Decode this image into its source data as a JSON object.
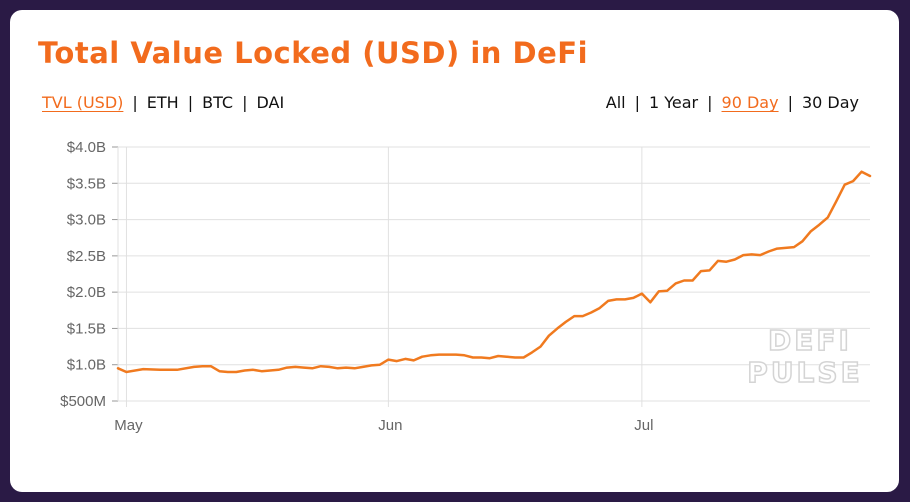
{
  "title": "Total Value Locked (USD) in DeFi",
  "metric_tabs": [
    {
      "label": "TVL (USD)",
      "active": true
    },
    {
      "label": "ETH",
      "active": false
    },
    {
      "label": "BTC",
      "active": false
    },
    {
      "label": "DAI",
      "active": false
    }
  ],
  "range_tabs": [
    {
      "label": "All",
      "active": false
    },
    {
      "label": "1 Year",
      "active": false
    },
    {
      "label": "90 Day",
      "active": true
    },
    {
      "label": "30 Day",
      "active": false
    }
  ],
  "separator": "|",
  "watermark": [
    "DEFI",
    "PULSE"
  ],
  "colors": {
    "accent": "#f26b1d",
    "line": "#f07a1f",
    "grid": "#e0e0e0",
    "background": "#2a1a45"
  },
  "chart_data": {
    "type": "line",
    "xlabel": "",
    "ylabel": "",
    "ylim": [
      0.5,
      4.0
    ],
    "y_ticks": [
      {
        "value": 4.0,
        "label": "$4.0B"
      },
      {
        "value": 3.5,
        "label": "$3.5B"
      },
      {
        "value": 3.0,
        "label": "$3.0B"
      },
      {
        "value": 2.5,
        "label": "$2.5B"
      },
      {
        "value": 2.0,
        "label": "$2.0B"
      },
      {
        "value": 1.5,
        "label": "$1.5B"
      },
      {
        "value": 1.0,
        "label": "$1.0B"
      },
      {
        "value": 0.5,
        "label": "$500M"
      }
    ],
    "x_range": [
      "2020-04-30",
      "2020-07-28"
    ],
    "x_ticks": [
      {
        "date": "2020-05-01",
        "label": "May"
      },
      {
        "date": "2020-06-01",
        "label": "Jun"
      },
      {
        "date": "2020-07-01",
        "label": "Jul"
      }
    ],
    "grid": true,
    "series": [
      {
        "values": [
          [
            "2020-04-30",
            0.95
          ],
          [
            "2020-05-01",
            0.9
          ],
          [
            "2020-05-03",
            0.94
          ],
          [
            "2020-05-05",
            0.93
          ],
          [
            "2020-05-07",
            0.93
          ],
          [
            "2020-05-09",
            0.97
          ],
          [
            "2020-05-10",
            0.98
          ],
          [
            "2020-05-11",
            0.98
          ],
          [
            "2020-05-12",
            0.91
          ],
          [
            "2020-05-13",
            0.9
          ],
          [
            "2020-05-14",
            0.9
          ],
          [
            "2020-05-15",
            0.92
          ],
          [
            "2020-05-16",
            0.93
          ],
          [
            "2020-05-17",
            0.91
          ],
          [
            "2020-05-18",
            0.92
          ],
          [
            "2020-05-19",
            0.93
          ],
          [
            "2020-05-20",
            0.96
          ],
          [
            "2020-05-21",
            0.97
          ],
          [
            "2020-05-22",
            0.96
          ],
          [
            "2020-05-23",
            0.95
          ],
          [
            "2020-05-24",
            0.98
          ],
          [
            "2020-05-25",
            0.97
          ],
          [
            "2020-05-26",
            0.95
          ],
          [
            "2020-05-27",
            0.96
          ],
          [
            "2020-05-28",
            0.95
          ],
          [
            "2020-05-29",
            0.97
          ],
          [
            "2020-05-30",
            0.99
          ],
          [
            "2020-05-31",
            1.0
          ],
          [
            "2020-06-01",
            1.07
          ],
          [
            "2020-06-02",
            1.05
          ],
          [
            "2020-06-03",
            1.08
          ],
          [
            "2020-06-04",
            1.06
          ],
          [
            "2020-06-05",
            1.11
          ],
          [
            "2020-06-06",
            1.13
          ],
          [
            "2020-06-07",
            1.14
          ],
          [
            "2020-06-08",
            1.14
          ],
          [
            "2020-06-09",
            1.14
          ],
          [
            "2020-06-10",
            1.13
          ],
          [
            "2020-06-11",
            1.1
          ],
          [
            "2020-06-12",
            1.1
          ],
          [
            "2020-06-13",
            1.09
          ],
          [
            "2020-06-14",
            1.12
          ],
          [
            "2020-06-15",
            1.11
          ],
          [
            "2020-06-16",
            1.1
          ],
          [
            "2020-06-17",
            1.1
          ],
          [
            "2020-06-18",
            1.17
          ],
          [
            "2020-06-19",
            1.25
          ],
          [
            "2020-06-20",
            1.4
          ],
          [
            "2020-06-21",
            1.5
          ],
          [
            "2020-06-22",
            1.59
          ],
          [
            "2020-06-23",
            1.67
          ],
          [
            "2020-06-24",
            1.67
          ],
          [
            "2020-06-25",
            1.72
          ],
          [
            "2020-06-26",
            1.78
          ],
          [
            "2020-06-27",
            1.88
          ],
          [
            "2020-06-28",
            1.9
          ],
          [
            "2020-06-29",
            1.9
          ],
          [
            "2020-06-30",
            1.92
          ],
          [
            "2020-07-01",
            1.98
          ],
          [
            "2020-07-02",
            1.86
          ],
          [
            "2020-07-03",
            2.01
          ],
          [
            "2020-07-04",
            2.02
          ],
          [
            "2020-07-05",
            2.12
          ],
          [
            "2020-07-06",
            2.16
          ],
          [
            "2020-07-07",
            2.16
          ],
          [
            "2020-07-08",
            2.29
          ],
          [
            "2020-07-09",
            2.3
          ],
          [
            "2020-07-10",
            2.43
          ],
          [
            "2020-07-11",
            2.42
          ],
          [
            "2020-07-12",
            2.45
          ],
          [
            "2020-07-13",
            2.51
          ],
          [
            "2020-07-14",
            2.52
          ],
          [
            "2020-07-15",
            2.51
          ],
          [
            "2020-07-16",
            2.56
          ],
          [
            "2020-07-17",
            2.6
          ],
          [
            "2020-07-18",
            2.61
          ],
          [
            "2020-07-19",
            2.62
          ],
          [
            "2020-07-20",
            2.7
          ],
          [
            "2020-07-21",
            2.84
          ],
          [
            "2020-07-22",
            2.93
          ],
          [
            "2020-07-23",
            3.03
          ],
          [
            "2020-07-24",
            3.25
          ],
          [
            "2020-07-25",
            3.48
          ],
          [
            "2020-07-26",
            3.53
          ],
          [
            "2020-07-27",
            3.66
          ],
          [
            "2020-07-28",
            3.6
          ]
        ]
      }
    ]
  }
}
